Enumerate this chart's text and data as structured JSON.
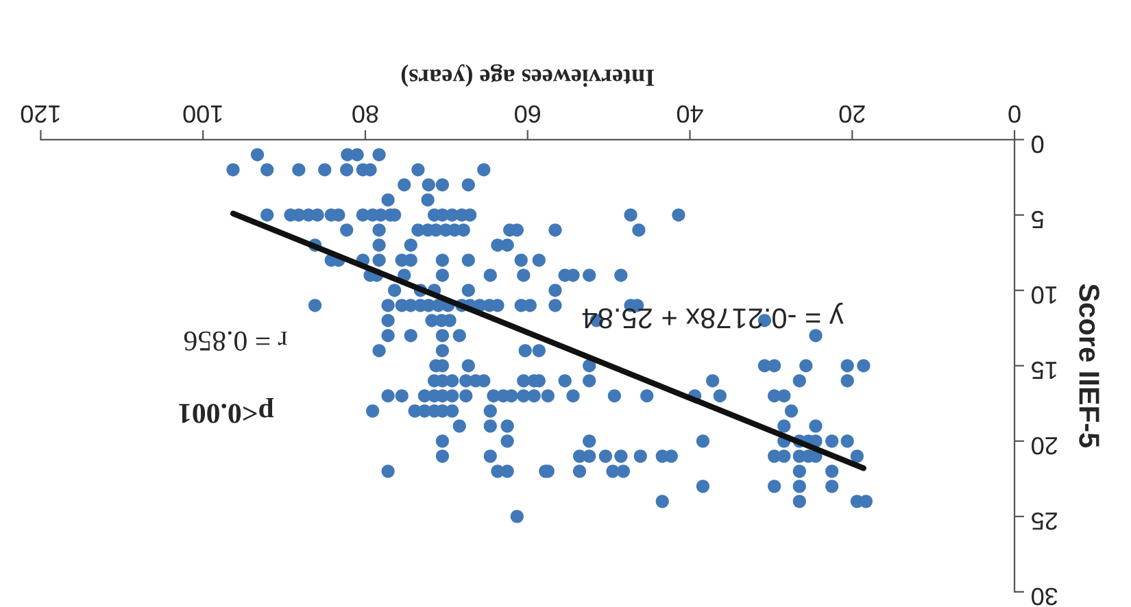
{
  "chart_data": {
    "type": "scatter",
    "xlabel": "Interviewees age (years)",
    "ylabel": "Score IIEF-5",
    "xlim": [
      120,
      0
    ],
    "xticks": [
      0,
      20,
      40,
      60,
      80,
      100,
      120
    ],
    "ylim": [
      30,
      0
    ],
    "yticks": [
      0,
      5,
      10,
      15,
      20,
      25,
      30
    ],
    "grid": false,
    "marker": "circle",
    "series": [
      {
        "color": "#4178b8",
        "x": [
          93.3,
          82.2,
          81.0,
          78.3,
          96.3,
          92.1,
          88.2,
          85.0,
          82.3,
          80.3,
          79.4,
          73.5,
          65.4,
          75.2,
          72.2,
          70.5,
          67.3,
          77.2,
          72.3,
          92.1,
          89.2,
          88.2,
          87.0,
          85.9,
          84.2,
          83.3,
          80.3,
          79.1,
          78.1,
          76.9,
          76.4,
          71.5,
          70.5,
          69.3,
          68.1,
          67.1,
          47.3,
          41.4,
          82.3,
          78.3,
          73.5,
          72.3,
          71.3,
          70.1,
          69.0,
          67.9,
          62.2,
          61.3,
          56.6,
          46.3,
          86.2,
          78.3,
          74.4,
          63.7,
          62.5,
          84.2,
          83.3,
          80.3,
          78.3,
          75.5,
          74.4,
          70.5,
          67.3,
          60.8,
          58.6,
          79.4,
          78.6,
          75.2,
          70.5,
          64.6,
          60.5,
          55.4,
          54.4,
          52.4,
          48.5,
          76.4,
          73.2,
          71.5,
          67.3,
          56.6,
          86.2,
          77.2,
          75.5,
          74.4,
          73.2,
          72.2,
          71.0,
          69.8,
          68.1,
          67.1,
          65.9,
          64.7,
          63.7,
          60.8,
          59.7,
          56.6,
          47.3,
          46.5,
          77.2,
          71.8,
          70.6,
          69.6,
          51.5,
          30.8,
          77.2,
          74.4,
          70.5,
          68.4,
          24.5,
          78.3,
          70.5,
          60.3,
          58.6,
          71.3,
          70.5,
          67.3,
          52.4,
          30.8,
          29.6,
          25.7,
          20.6,
          18.6,
          71.5,
          70.5,
          69.3,
          67.6,
          66.4,
          65.4,
          60.5,
          59.2,
          58.6,
          55.4,
          52.4,
          37.2,
          26.5,
          20.6,
          77.2,
          75.5,
          72.7,
          71.5,
          70.5,
          69.3,
          67.6,
          64.2,
          63.0,
          62.0,
          60.5,
          59.2,
          57.5,
          54.4,
          49.3,
          45.3,
          39.4,
          36.3,
          29.6,
          28.4,
          79.1,
          73.9,
          72.7,
          71.5,
          70.5,
          69.3,
          64.6,
          27.5,
          68.4,
          64.6,
          62.5,
          28.4,
          24.5,
          70.5,
          62.5,
          52.4,
          38.4,
          28.4,
          26.5,
          25.4,
          24.5,
          22.5,
          20.6,
          70.5,
          64.6,
          53.6,
          52.4,
          50.4,
          48.5,
          46.1,
          43.4,
          42.3,
          29.6,
          28.4,
          26.5,
          25.4,
          24.5,
          19.4,
          77.2,
          63.7,
          62.5,
          57.8,
          57.5,
          53.6,
          49.5,
          48.2,
          26.5,
          22.5,
          38.4,
          29.6,
          26.5,
          22.5,
          43.4,
          26.5,
          19.4,
          18.3,
          61.3
        ],
        "values": [
          1,
          1,
          1,
          1,
          2,
          2,
          2,
          2,
          2,
          2,
          2,
          2,
          2,
          3,
          3,
          3,
          3,
          4,
          4,
          5,
          5,
          5,
          5,
          5,
          5,
          5,
          5,
          5,
          5,
          5,
          5,
          5,
          5,
          5,
          5,
          5,
          5,
          5,
          6,
          6,
          6,
          6,
          6,
          6,
          6,
          6,
          6,
          6,
          6,
          6,
          7,
          7,
          7,
          7,
          7,
          8,
          8,
          8,
          8,
          8,
          8,
          8,
          8,
          8,
          8,
          9,
          9,
          9,
          9,
          9,
          9,
          9,
          9,
          9,
          9,
          10,
          10,
          10,
          10,
          10,
          11,
          11,
          11,
          11,
          11,
          11,
          11,
          11,
          11,
          11,
          11,
          11,
          11,
          11,
          11,
          11,
          11,
          11,
          12,
          12,
          12,
          12,
          12,
          12,
          13,
          13,
          13,
          13,
          13,
          14,
          14,
          14,
          14,
          15,
          15,
          15,
          15,
          15,
          15,
          15,
          15,
          15,
          16,
          16,
          16,
          16,
          16,
          16,
          16,
          16,
          16,
          16,
          16,
          16,
          16,
          16,
          17,
          17,
          17,
          17,
          17,
          17,
          17,
          17,
          17,
          17,
          17,
          17,
          17,
          17,
          17,
          17,
          17,
          17,
          17,
          17,
          18,
          18,
          18,
          18,
          18,
          18,
          18,
          18,
          19,
          19,
          19,
          19,
          19,
          20,
          20,
          20,
          20,
          20,
          20,
          20,
          20,
          20,
          20,
          21,
          21,
          21,
          21,
          21,
          21,
          21,
          21,
          21,
          21,
          21,
          21,
          21,
          21,
          21,
          22,
          22,
          22,
          22,
          22,
          22,
          22,
          22,
          22,
          22,
          23,
          23,
          23,
          23,
          24,
          24,
          24,
          24,
          25
        ]
      },
      {
        "type": "line",
        "color": "#111111",
        "line_style": "solid",
        "marker": "none",
        "x": [
          96.3,
          18.6
        ],
        "values": [
          4.9,
          21.8
        ]
      }
    ],
    "annotations": [
      "y = -0.2178x + 25.84",
      "r = 0.856",
      "p<0.001"
    ]
  }
}
